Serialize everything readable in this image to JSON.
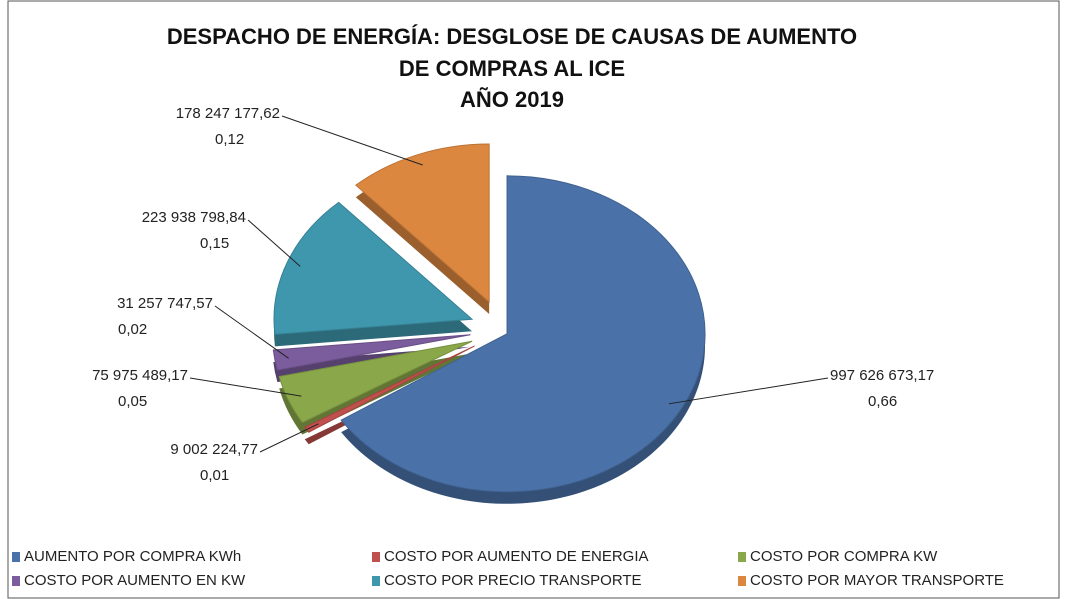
{
  "chart_data": {
    "type": "pie",
    "title": [
      "DESPACHO DE ENERGÍA: DESGLOSE DE CAUSAS DE AUMENTO",
      "DE COMPRAS AL ICE"
    ],
    "subtitle": "AÑO 2019",
    "categories": [
      "AUMENTO POR COMPRA KWh",
      "COSTO POR AUMENTO DE ENERGIA",
      "COSTO POR COMPRA KW",
      "COSTO POR AUMENTO EN KW",
      "COSTO POR PRECIO TRANSPORTE",
      "COSTO POR MAYOR TRANSPORTE"
    ],
    "values": [
      997626673.17,
      9002224.77,
      75975489.17,
      31257747.57,
      223938798.84,
      178247177.62
    ],
    "value_labels": [
      "997 626 673,17",
      "9 002 224,77",
      "75 975 489,17",
      "31 257 747,57",
      "223 938 798,84",
      "178 247 177,62"
    ],
    "share_labels": [
      "0,66",
      "0,01",
      "0,05",
      "0,02",
      "0,15",
      "0,12"
    ],
    "colors": [
      "#4a72a8",
      "#c0504d",
      "#8aa84a",
      "#7b5c9c",
      "#3f97ad",
      "#dc8740"
    ]
  }
}
